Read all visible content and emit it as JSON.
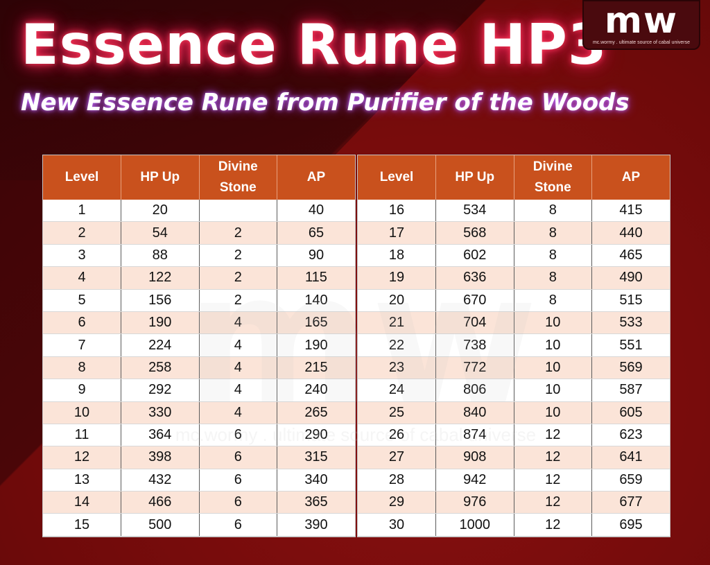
{
  "header": {
    "title": "Essence Rune HP3",
    "subtitle": "New Essence Rune from Purifier of the Woods"
  },
  "logo": {
    "mark": "mw",
    "tagline": "mc.wormy . ultimate source of cabal universe"
  },
  "table": {
    "columns": [
      "Level",
      "HP Up",
      "Divine Stone",
      "AP"
    ],
    "left_rows": [
      [
        "1",
        "20",
        "",
        "40"
      ],
      [
        "2",
        "54",
        "2",
        "65"
      ],
      [
        "3",
        "88",
        "2",
        "90"
      ],
      [
        "4",
        "122",
        "2",
        "115"
      ],
      [
        "5",
        "156",
        "2",
        "140"
      ],
      [
        "6",
        "190",
        "4",
        "165"
      ],
      [
        "7",
        "224",
        "4",
        "190"
      ],
      [
        "8",
        "258",
        "4",
        "215"
      ],
      [
        "9",
        "292",
        "4",
        "240"
      ],
      [
        "10",
        "330",
        "4",
        "265"
      ],
      [
        "11",
        "364",
        "6",
        "290"
      ],
      [
        "12",
        "398",
        "6",
        "315"
      ],
      [
        "13",
        "432",
        "6",
        "340"
      ],
      [
        "14",
        "466",
        "6",
        "365"
      ],
      [
        "15",
        "500",
        "6",
        "390"
      ]
    ],
    "right_rows": [
      [
        "16",
        "534",
        "8",
        "415"
      ],
      [
        "17",
        "568",
        "8",
        "440"
      ],
      [
        "18",
        "602",
        "8",
        "465"
      ],
      [
        "19",
        "636",
        "8",
        "490"
      ],
      [
        "20",
        "670",
        "8",
        "515"
      ],
      [
        "21",
        "704",
        "10",
        "533"
      ],
      [
        "22",
        "738",
        "10",
        "551"
      ],
      [
        "23",
        "772",
        "10",
        "569"
      ],
      [
        "24",
        "806",
        "10",
        "587"
      ],
      [
        "25",
        "840",
        "10",
        "605"
      ],
      [
        "26",
        "874",
        "12",
        "623"
      ],
      [
        "27",
        "908",
        "12",
        "641"
      ],
      [
        "28",
        "942",
        "12",
        "659"
      ],
      [
        "29",
        "976",
        "12",
        "677"
      ],
      [
        "30",
        "1000",
        "12",
        "695"
      ]
    ]
  },
  "watermark": {
    "mark": "mw",
    "tagline": "mc.wormy . ultimate source of cabal universe"
  },
  "colors": {
    "header_bg": "#c9511d",
    "alt_row_bg": "#fbe4d8",
    "background": "#7a0c0c"
  }
}
